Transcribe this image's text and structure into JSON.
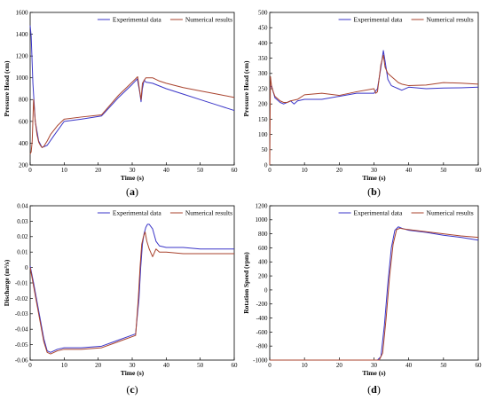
{
  "colors": {
    "experimental": "#3a35c8",
    "numerical": "#a9432e"
  },
  "chart_data": [
    {
      "id": "a",
      "type": "line",
      "panel_label": "a",
      "xlabel": "Time (s)",
      "ylabel": "Pressure Head (cm)",
      "xlim": [
        0,
        60
      ],
      "ylim": [
        200,
        1600
      ],
      "xticks": [
        0,
        10,
        20,
        30,
        40,
        50,
        60
      ],
      "yticks": [
        200,
        400,
        600,
        800,
        1000,
        1200,
        1400,
        1600
      ],
      "legend": "top-right",
      "series": [
        {
          "name": "Experimental data",
          "color_key": "experimental",
          "x": [
            0,
            0.3,
            0.8,
            1.5,
            2.5,
            3.5,
            5,
            7,
            10,
            15,
            21,
            26,
            30,
            31.5,
            32.2,
            32.6,
            33,
            33.5,
            34,
            36,
            40,
            45,
            50,
            55,
            60
          ],
          "y": [
            1480,
            1380,
            950,
            600,
            420,
            360,
            380,
            470,
            600,
            620,
            650,
            820,
            940,
            990,
            870,
            780,
            900,
            980,
            960,
            950,
            900,
            850,
            800,
            750,
            700
          ]
        },
        {
          "name": "Numerical results",
          "color_key": "numerical",
          "x": [
            0,
            0.3,
            0.6,
            1,
            1.5,
            2,
            2.5,
            3,
            3.5,
            4,
            5,
            6,
            8,
            10,
            15,
            21,
            26,
            30,
            31.6,
            32.2,
            32.6,
            33,
            34,
            36,
            38,
            40,
            45,
            50,
            55,
            60
          ],
          "y": [
            300,
            320,
            420,
            800,
            600,
            480,
            410,
            380,
            360,
            370,
            420,
            480,
            560,
            620,
            640,
            660,
            840,
            960,
            1010,
            880,
            800,
            950,
            1000,
            1000,
            970,
            950,
            910,
            880,
            850,
            820
          ]
        }
      ]
    },
    {
      "id": "b",
      "type": "line",
      "panel_label": "b",
      "xlabel": "Time (s)",
      "ylabel": "Pressure Head (cm)",
      "xlim": [
        0,
        60
      ],
      "ylim": [
        0,
        500
      ],
      "xticks": [
        0,
        10,
        20,
        30,
        40,
        50,
        60
      ],
      "yticks": [
        0,
        50,
        100,
        150,
        200,
        250,
        300,
        350,
        400,
        450,
        500
      ],
      "legend": "top-right",
      "series": [
        {
          "name": "Experimental data",
          "color_key": "experimental",
          "x": [
            0,
            0.5,
            1,
            1.5,
            2,
            3,
            4,
            5,
            6,
            7,
            8,
            10,
            15,
            20,
            25,
            30,
            31,
            32,
            32.7,
            33.2,
            34,
            35,
            36,
            37,
            38,
            40,
            45,
            50,
            55,
            60
          ],
          "y": [
            250,
            260,
            240,
            220,
            215,
            205,
            200,
            205,
            210,
            200,
            210,
            215,
            215,
            225,
            235,
            235,
            250,
            320,
            375,
            340,
            280,
            260,
            255,
            250,
            245,
            255,
            250,
            252,
            253,
            255
          ]
        },
        {
          "name": "Numerical results",
          "color_key": "numerical",
          "x": [
            0,
            0.2,
            0.5,
            1,
            1.5,
            2,
            3,
            4,
            5,
            6,
            8,
            10,
            15,
            20,
            25,
            30,
            30.5,
            31,
            32,
            32.7,
            33.2,
            34,
            35,
            36,
            37,
            38,
            40,
            45,
            50,
            55,
            60
          ],
          "y": [
            0,
            290,
            260,
            240,
            225,
            220,
            210,
            205,
            205,
            210,
            215,
            230,
            235,
            228,
            240,
            250,
            235,
            240,
            330,
            360,
            320,
            300,
            290,
            280,
            270,
            265,
            260,
            262,
            270,
            268,
            265
          ]
        }
      ]
    },
    {
      "id": "c",
      "type": "line",
      "panel_label": "c",
      "xlabel": "Time (s)",
      "ylabel": "Discharge (m³/s)",
      "xlim": [
        0,
        60
      ],
      "ylim": [
        -0.06,
        0.04
      ],
      "xticks": [
        0,
        10,
        20,
        30,
        40,
        50,
        60
      ],
      "yticks": [
        -0.06,
        -0.05,
        -0.04,
        -0.03,
        -0.02,
        -0.01,
        0,
        0.01,
        0.02,
        0.03,
        0.04
      ],
      "ytick_labels": [
        "-0.06",
        "-0.05",
        "-0.04",
        "-0.03",
        "-0.02",
        "-0.01",
        "0",
        "0.01",
        "0.02",
        "0.03",
        "0.04"
      ],
      "legend": "top-right",
      "series": [
        {
          "name": "Experimental data",
          "color_key": "experimental",
          "x": [
            0,
            1,
            2,
            3,
            4,
            5,
            6,
            7,
            8,
            10,
            15,
            21,
            26,
            31,
            32,
            32.5,
            33,
            33.5,
            34,
            34.5,
            35,
            36,
            37,
            38,
            40,
            45,
            50,
            55,
            60
          ],
          "y": [
            0.001,
            -0.01,
            -0.022,
            -0.034,
            -0.046,
            -0.054,
            -0.055,
            -0.054,
            -0.053,
            -0.052,
            -0.052,
            -0.051,
            -0.047,
            -0.043,
            -0.02,
            0.0,
            0.015,
            0.022,
            0.026,
            0.028,
            0.028,
            0.025,
            0.017,
            0.014,
            0.013,
            0.013,
            0.012,
            0.012,
            0.012
          ]
        },
        {
          "name": "Numerical results",
          "color_key": "numerical",
          "x": [
            0,
            1,
            2,
            3,
            4,
            5,
            6,
            7,
            8,
            10,
            15,
            21,
            26,
            31,
            31.8,
            32.3,
            32.8,
            33.3,
            33.8,
            34.3,
            35,
            36,
            37,
            38,
            40,
            45,
            50,
            55,
            60
          ],
          "y": [
            0,
            -0.012,
            -0.024,
            -0.036,
            -0.048,
            -0.055,
            -0.056,
            -0.055,
            -0.054,
            -0.053,
            -0.053,
            -0.052,
            -0.048,
            -0.044,
            -0.02,
            0.0,
            0.015,
            0.02,
            0.023,
            0.017,
            0.012,
            0.007,
            0.012,
            0.01,
            0.01,
            0.009,
            0.009,
            0.009,
            0.009
          ]
        }
      ]
    },
    {
      "id": "d",
      "type": "line",
      "panel_label": "d",
      "xlabel": "Time (s)",
      "ylabel": "Rotation Speed (rpm)",
      "xlim": [
        0,
        60
      ],
      "ylim": [
        -1000,
        1200
      ],
      "xticks": [
        0,
        10,
        20,
        30,
        40,
        50,
        60
      ],
      "yticks": [
        -1000,
        -800,
        -600,
        -400,
        -200,
        0,
        200,
        400,
        600,
        800,
        1000,
        1200
      ],
      "legend": "top-right",
      "series": [
        {
          "name": "Experimental data",
          "color_key": "experimental",
          "x": [
            0,
            31,
            32,
            33,
            34,
            35,
            36,
            37,
            38,
            40,
            45,
            50,
            55,
            60
          ],
          "y": [
            -1000,
            -1000,
            -950,
            -500,
            100,
            600,
            850,
            900,
            880,
            850,
            820,
            780,
            750,
            710
          ]
        },
        {
          "name": "Numerical results",
          "color_key": "numerical",
          "x": [
            0,
            31.5,
            32.5,
            33.5,
            34.5,
            35.5,
            36.5,
            37.5,
            38.5,
            40,
            45,
            50,
            55,
            60
          ],
          "y": [
            -1000,
            -1000,
            -900,
            -400,
            200,
            650,
            860,
            880,
            870,
            860,
            830,
            800,
            770,
            750
          ]
        }
      ]
    }
  ]
}
